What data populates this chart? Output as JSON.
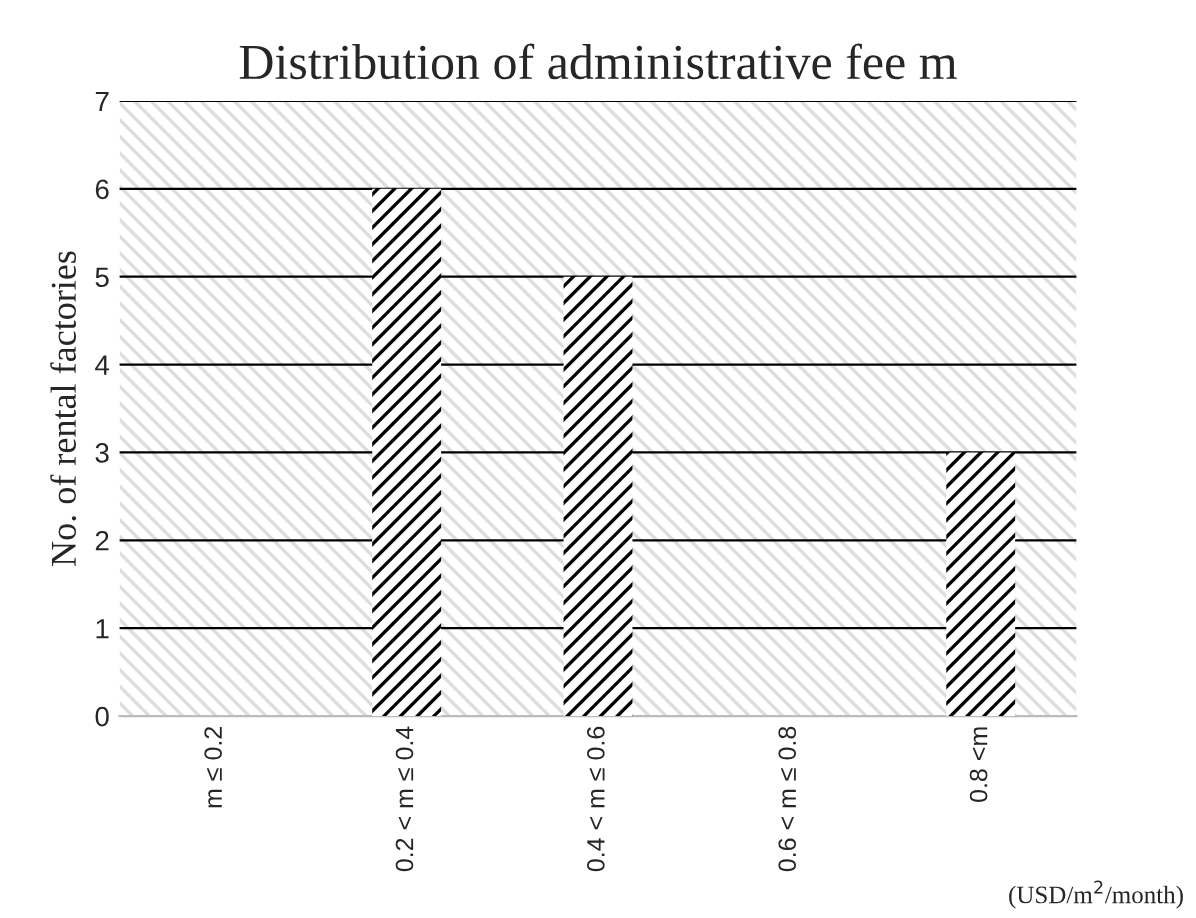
{
  "chart_data": {
    "type": "bar",
    "title": "Distribution of administrative fee m",
    "ylabel": "No. of rental factories",
    "categories": [
      "m ≤ 0.2",
      "0.2 < m ≤ 0.4",
      "0.4 < m ≤ 0.6",
      "0.6 < m ≤ 0.8",
      "0.8 <m"
    ],
    "values": [
      0,
      6,
      5,
      0,
      3
    ],
    "color": "#000000",
    "ylim": [
      0,
      7
    ],
    "yticks": [
      0,
      1,
      2,
      3,
      4,
      5,
      6,
      7
    ],
    "grid": "y",
    "annotations": [
      "(USD/m$^{2}$/month)"
    ]
  }
}
